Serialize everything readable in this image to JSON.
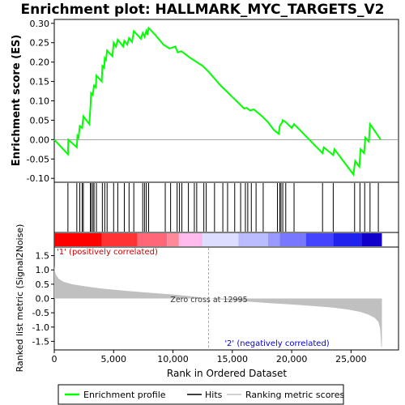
{
  "chart_data": {
    "type": "line",
    "title": "Enrichment plot: HALLMARK_MYC_TARGETS_V2",
    "es_panel": {
      "ylabel": "Enrichment score (ES)",
      "ylim": [
        -0.11,
        0.31
      ],
      "yticks": [
        "0.30",
        "0.25",
        "0.20",
        "0.15",
        "0.10",
        "0.05",
        "0.00",
        "-0.05",
        "-0.10"
      ],
      "ytick_values": [
        0.3,
        0.25,
        0.2,
        0.15,
        0.1,
        0.05,
        0.0,
        -0.05,
        -0.1
      ],
      "series_name": "Enrichment profile",
      "color": "#00ff00",
      "points": [
        [
          0,
          0.0
        ],
        [
          1150,
          -0.038
        ],
        [
          1180,
          0.0
        ],
        [
          1900,
          -0.02
        ],
        [
          1950,
          0.01
        ],
        [
          2050,
          0.005
        ],
        [
          2150,
          0.035
        ],
        [
          2350,
          0.03
        ],
        [
          2450,
          0.06
        ],
        [
          2950,
          0.04
        ],
        [
          3050,
          0.085
        ],
        [
          3100,
          0.12
        ],
        [
          3250,
          0.115
        ],
        [
          3350,
          0.14
        ],
        [
          3500,
          0.135
        ],
        [
          3550,
          0.165
        ],
        [
          4000,
          0.15
        ],
        [
          4050,
          0.19
        ],
        [
          4200,
          0.185
        ],
        [
          4250,
          0.21
        ],
        [
          4350,
          0.205
        ],
        [
          4450,
          0.23
        ],
        [
          4900,
          0.215
        ],
        [
          5000,
          0.25
        ],
        [
          5200,
          0.24
        ],
        [
          5350,
          0.258
        ],
        [
          5800,
          0.24
        ],
        [
          5900,
          0.255
        ],
        [
          6150,
          0.245
        ],
        [
          6300,
          0.262
        ],
        [
          6550,
          0.252
        ],
        [
          6700,
          0.28
        ],
        [
          7300,
          0.26
        ],
        [
          7450,
          0.275
        ],
        [
          7600,
          0.265
        ],
        [
          7750,
          0.28
        ],
        [
          7850,
          0.27
        ],
        [
          7950,
          0.288
        ],
        [
          8500,
          0.27
        ],
        [
          9200,
          0.245
        ],
        [
          9700,
          0.235
        ],
        [
          10200,
          0.24
        ],
        [
          10400,
          0.225
        ],
        [
          10700,
          0.228
        ],
        [
          11500,
          0.21
        ],
        [
          12500,
          0.19
        ],
        [
          13000,
          0.175
        ],
        [
          14000,
          0.14
        ],
        [
          15000,
          0.11
        ],
        [
          15500,
          0.095
        ],
        [
          16000,
          0.08
        ],
        [
          16200,
          0.082
        ],
        [
          16500,
          0.075
        ],
        [
          16800,
          0.078
        ],
        [
          17200,
          0.068
        ],
        [
          17500,
          0.06
        ],
        [
          18000,
          0.045
        ],
        [
          18500,
          0.025
        ],
        [
          18900,
          0.015
        ],
        [
          19000,
          0.035
        ],
        [
          19200,
          0.045
        ],
        [
          19250,
          0.05
        ],
        [
          19500,
          0.045
        ],
        [
          20000,
          0.03
        ],
        [
          20200,
          0.04
        ],
        [
          22600,
          -0.035
        ],
        [
          22700,
          -0.02
        ],
        [
          23500,
          -0.04
        ],
        [
          23600,
          -0.025
        ],
        [
          25200,
          -0.09
        ],
        [
          25350,
          -0.055
        ],
        [
          25700,
          -0.07
        ],
        [
          25800,
          -0.025
        ],
        [
          26100,
          -0.035
        ],
        [
          26200,
          0.005
        ],
        [
          26500,
          -0.005
        ],
        [
          26600,
          0.04
        ],
        [
          27500,
          0.0
        ]
      ]
    },
    "hits_panel": {
      "series_name": "Hits",
      "positions": [
        1150,
        1900,
        2150,
        2350,
        2450,
        3050,
        3100,
        3250,
        3350,
        3550,
        4050,
        4250,
        4450,
        5000,
        5350,
        5900,
        6300,
        6700,
        7450,
        7600,
        7750,
        7950,
        9350,
        9800,
        10350,
        10550,
        10750,
        11300,
        11800,
        12000,
        12600,
        12800,
        13500,
        14200,
        14600,
        15200,
        15700,
        16100,
        16300,
        16600,
        17000,
        17600,
        18800,
        19000,
        19100,
        19250,
        19500,
        20200,
        22600,
        23500,
        25300,
        25750,
        26150,
        26600,
        27300
      ],
      "band_colors": [
        [
          0,
          "#ff0000"
        ],
        [
          4000,
          "#ff3333"
        ],
        [
          7000,
          "#ff6677"
        ],
        [
          9500,
          "#ff8899"
        ],
        [
          10500,
          "#ffbbee"
        ],
        [
          12500,
          "#ddddff"
        ],
        [
          15500,
          "#bbbbff"
        ],
        [
          18000,
          "#9999ff"
        ],
        [
          19000,
          "#7777ff"
        ],
        [
          21200,
          "#4444ff"
        ],
        [
          23500,
          "#2222ee"
        ],
        [
          25900,
          "#1100cc"
        ]
      ]
    },
    "metric_panel": {
      "ylabel": "Ranked list metric (Signal2Noise)",
      "xlabel": "Rank in Ordered Dataset",
      "ylim": [
        -1.8,
        1.8
      ],
      "yticks": [
        "1.5",
        "1.0",
        "0.5",
        "0.0",
        "-0.5",
        "-1.0",
        "-1.5"
      ],
      "ytick_values": [
        1.5,
        1.0,
        0.5,
        0.0,
        -0.5,
        -1.0,
        -1.5
      ],
      "xticks": [
        "0",
        "5,000",
        "10,000",
        "15,000",
        "20,000",
        "25,000"
      ],
      "xtick_values": [
        0,
        5000,
        10000,
        15000,
        20000,
        25000
      ],
      "xlim": [
        0,
        29000
      ],
      "n_ranks": 27600,
      "series_name": "Ranking metric scores",
      "color": "#c0c0c0",
      "points": [
        [
          0,
          1.15
        ],
        [
          50,
          0.95
        ],
        [
          150,
          0.82
        ],
        [
          400,
          0.68
        ],
        [
          800,
          0.58
        ],
        [
          1500,
          0.5
        ],
        [
          2500,
          0.43
        ],
        [
          4000,
          0.35
        ],
        [
          6000,
          0.27
        ],
        [
          8000,
          0.2
        ],
        [
          10000,
          0.14
        ],
        [
          11500,
          0.08
        ],
        [
          12995,
          0.0
        ],
        [
          14500,
          -0.05
        ],
        [
          16000,
          -0.1
        ],
        [
          18000,
          -0.16
        ],
        [
          20000,
          -0.21
        ],
        [
          22000,
          -0.27
        ],
        [
          23500,
          -0.32
        ],
        [
          24800,
          -0.39
        ],
        [
          25800,
          -0.47
        ],
        [
          26500,
          -0.57
        ],
        [
          27000,
          -0.68
        ],
        [
          27300,
          -0.82
        ],
        [
          27450,
          -1.05
        ],
        [
          27550,
          -1.7
        ],
        [
          27600,
          -1.7
        ]
      ],
      "zero_cross_rank": 12995,
      "zero_cross_label": "Zero cross at 12995",
      "pos_label": "'1' (positively correlated)",
      "neg_label": "'2' (negatively correlated)"
    },
    "legend": {
      "placement": "bottom",
      "items": [
        {
          "label": "Enrichment profile",
          "color": "#00ff00"
        },
        {
          "label": "Hits",
          "color": "#000000"
        },
        {
          "label": "Ranking metric scores",
          "color": "#c0c0c0"
        }
      ]
    }
  }
}
